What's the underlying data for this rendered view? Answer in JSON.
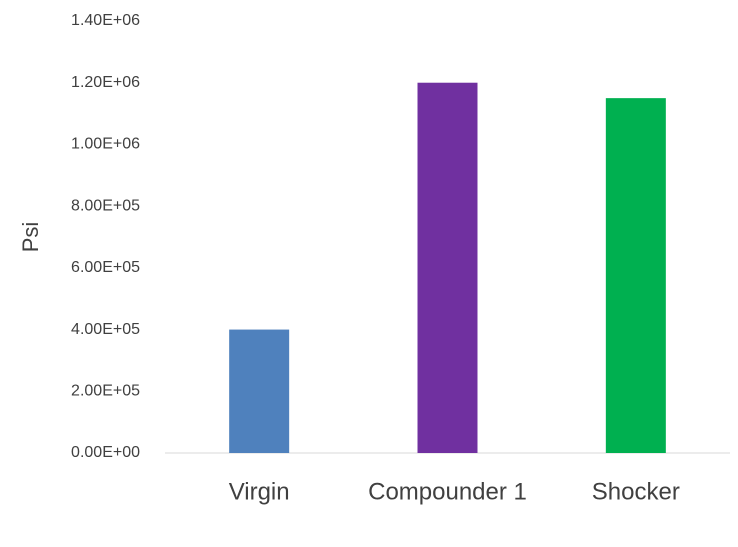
{
  "chart_data": {
    "type": "bar",
    "y_label": "Psi",
    "categories": [
      "Virgin",
      "Compounder 1",
      "Shocker"
    ],
    "values": [
      400000,
      1200000,
      1150000
    ],
    "colors": [
      "#4f81bd",
      "#7030a0",
      "#00b050"
    ],
    "ylim": [
      0,
      1400000
    ],
    "yticks": [
      {
        "value": 0,
        "label": "0.00E+00"
      },
      {
        "value": 200000,
        "label": "2.00E+05"
      },
      {
        "value": 400000,
        "label": "4.00E+05"
      },
      {
        "value": 600000,
        "label": "6.00E+05"
      },
      {
        "value": 800000,
        "label": "8.00E+05"
      },
      {
        "value": 1000000,
        "label": "1.00E+06"
      },
      {
        "value": 1200000,
        "label": "1.20E+06"
      },
      {
        "value": 1400000,
        "label": "1.40E+06"
      }
    ],
    "grid": false
  }
}
